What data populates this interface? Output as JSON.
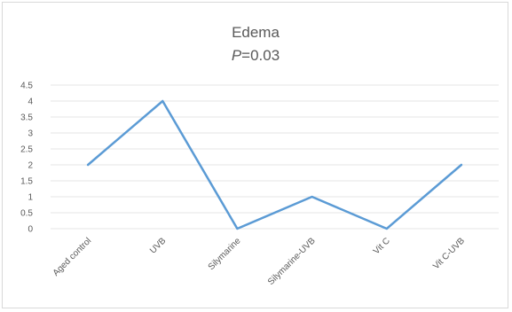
{
  "chart_data": {
    "type": "line",
    "title": "Edema",
    "subtitle_italic": "P",
    "subtitle_rest": "=0.03",
    "categories": [
      "Aged control",
      "UVB",
      "Silymarine",
      "Silymarine-UVB",
      "Vit C",
      "Vit C-UVB"
    ],
    "series": [
      {
        "values": [
          2,
          4,
          0,
          1,
          0,
          2
        ],
        "color": "#5b9bd5"
      }
    ],
    "yticks": [
      "0",
      "0.5",
      "1",
      "1.5",
      "2",
      "2.5",
      "3",
      "3.5",
      "4",
      "4.5"
    ],
    "ylim": [
      0,
      4.5
    ],
    "grid": true,
    "legend": "none"
  }
}
